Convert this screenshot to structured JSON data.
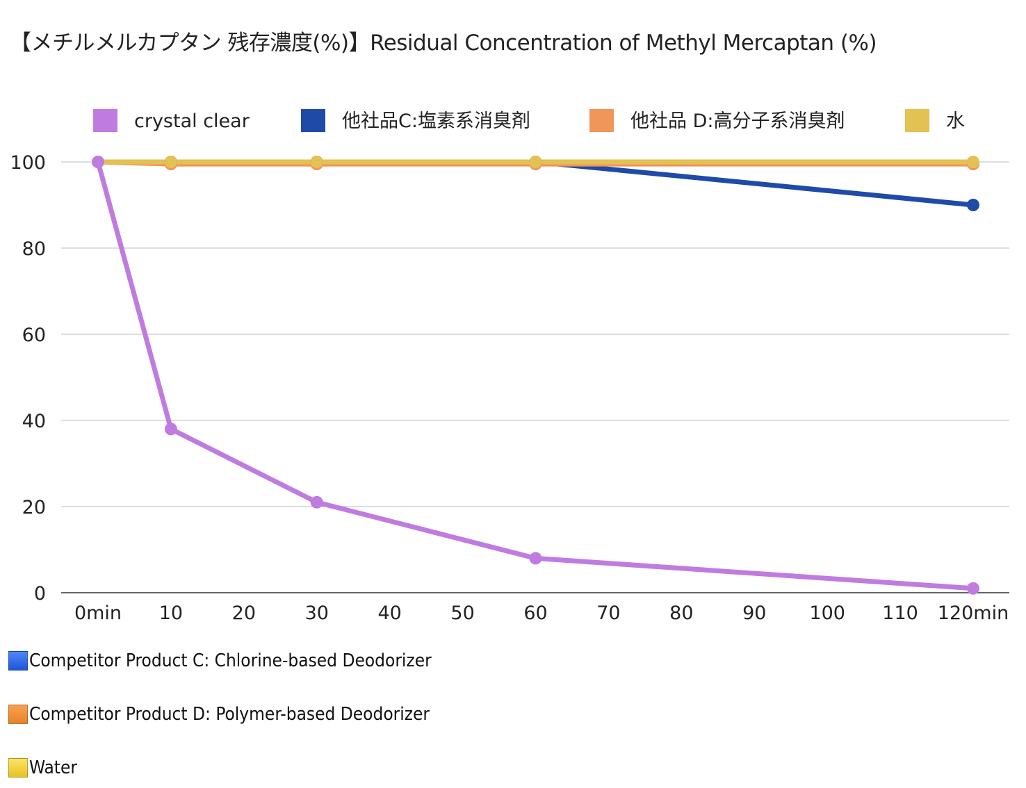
{
  "chart_data": {
    "type": "line",
    "title": "【メチルメルカプタン 残存濃度(%)】Residual Concentration of Methyl Mercaptan (%)",
    "xlabel": "",
    "ylabel": "",
    "xlim": [
      0,
      120
    ],
    "ylim": [
      0,
      100
    ],
    "x_ticks": [
      "0min",
      "10",
      "20",
      "30",
      "40",
      "50",
      "60",
      "70",
      "80",
      "90",
      "100",
      "110",
      "120min"
    ],
    "y_ticks": [
      "0",
      "20",
      "40",
      "60",
      "80",
      "100"
    ],
    "grid": true,
    "legend_position": "top",
    "series": [
      {
        "name": "crystal clear",
        "color": "#c07be0",
        "x": [
          0,
          10,
          30,
          60,
          120
        ],
        "y": [
          100,
          38,
          21,
          8,
          1
        ]
      },
      {
        "name": "他社品C:塩素系消臭剤",
        "color": "#1f4aa8",
        "x": [
          0,
          10,
          30,
          60,
          120
        ],
        "y": [
          100,
          100,
          100,
          100,
          90
        ]
      },
      {
        "name": "他社品 D:高分子系消臭剤",
        "color": "#f0965a",
        "x": [
          0,
          10,
          30,
          60,
          120
        ],
        "y": [
          100,
          99.5,
          99.5,
          99.5,
          99.5
        ]
      },
      {
        "name": "水",
        "color": "#e3c153",
        "x": [
          0,
          10,
          30,
          60,
          120
        ],
        "y": [
          100,
          100,
          100,
          100,
          100
        ]
      }
    ]
  },
  "notes": {
    "c_label": "Competitor Product C: Chlorine-based Deodorizer",
    "d_label": "Competitor Product D: Polymer-based Deodorizer",
    "w_label": "Water"
  }
}
